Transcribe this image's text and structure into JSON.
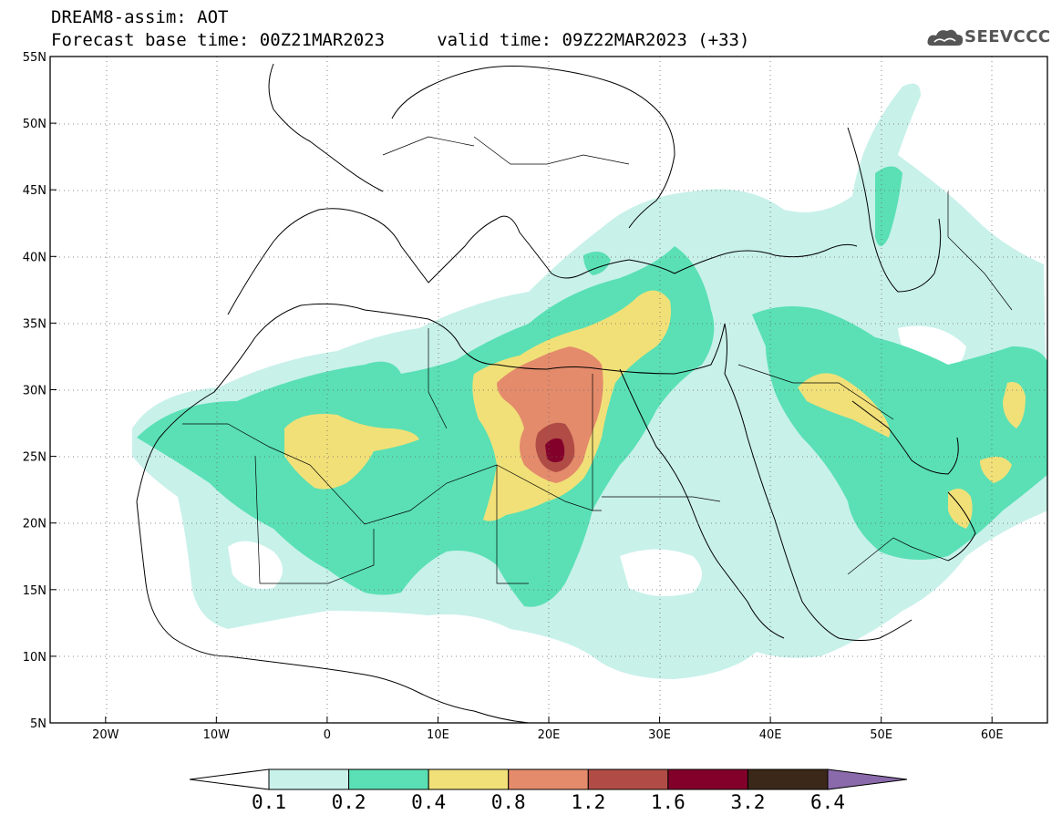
{
  "header": {
    "line1": "DREAM8-assim: AOT",
    "line2": "Forecast base time: 00Z21MAR2023     valid time: 09Z22MAR2023 (+33)"
  },
  "logo": {
    "text": "SEEVCCC",
    "icon": "cloud-icon"
  },
  "map": {
    "variable": "AOT",
    "lon_range": [
      -25,
      65
    ],
    "lat_range": [
      5,
      55
    ],
    "x_ticks": [
      "20W",
      "10W",
      "0",
      "10E",
      "20E",
      "30E",
      "40E",
      "50E",
      "60E"
    ],
    "y_ticks": [
      "55N",
      "50N",
      "45N",
      "40N",
      "35N",
      "30N",
      "25N",
      "20N",
      "15N",
      "10N",
      "5N"
    ],
    "grid": "dotted"
  },
  "colorbar": {
    "labels": [
      "0.1",
      "0.2",
      "0.4",
      "0.8",
      "1.2",
      "1.6",
      "3.2",
      "6.4"
    ],
    "colors": [
      "#c8f1ea",
      "#5ae0b4",
      "#f1e078",
      "#e48b6c",
      "#b04c45",
      "#82002a",
      "#3b2818",
      "#8a6aaa"
    ]
  }
}
